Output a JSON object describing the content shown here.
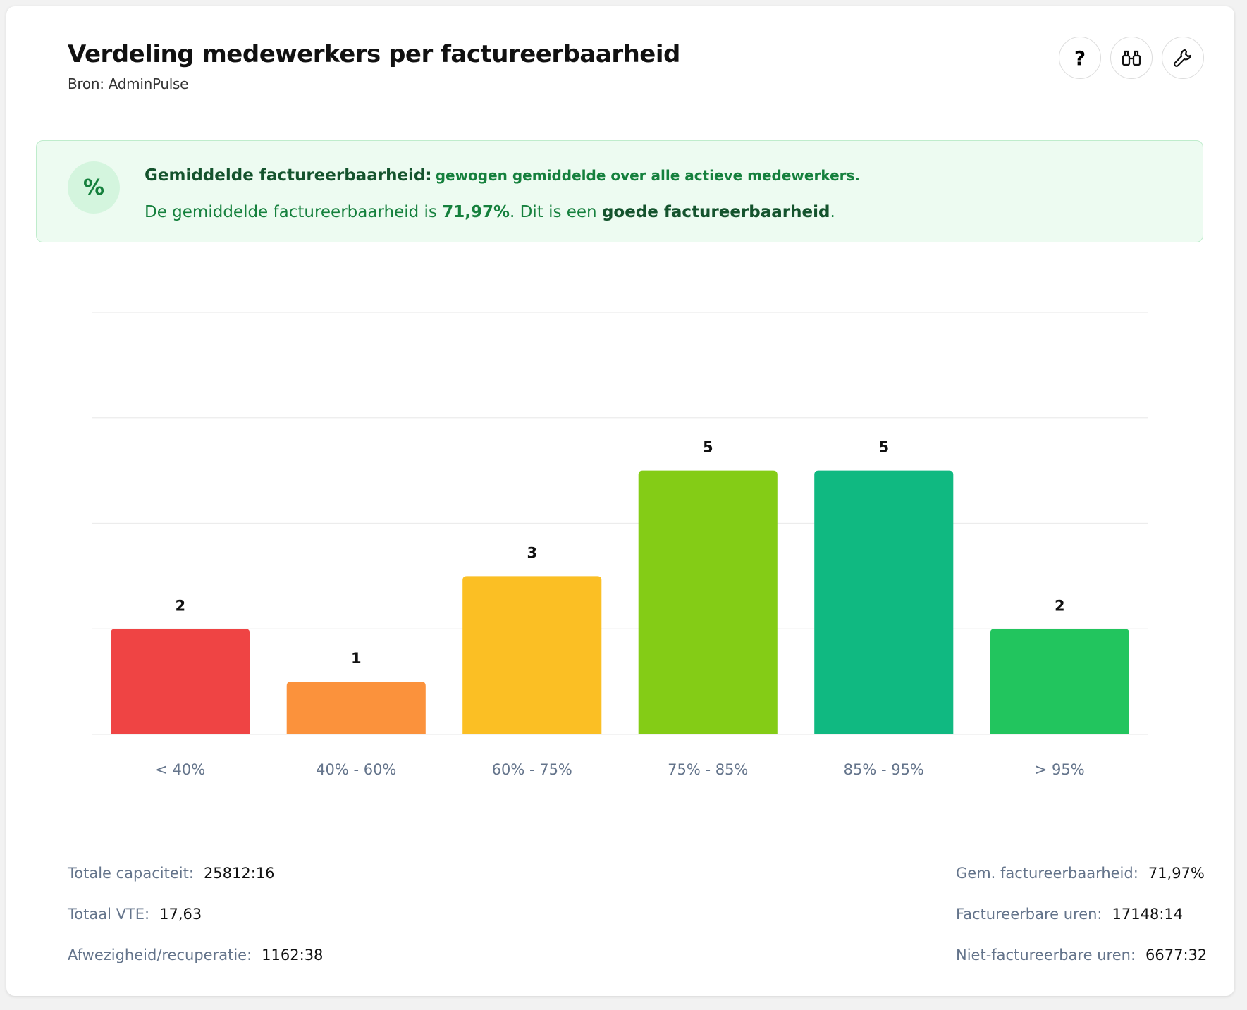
{
  "header": {
    "title": "Verdeling medewerkers per factureerbaarheid",
    "subtitle": "Bron: AdminPulse",
    "help_button": "?"
  },
  "info": {
    "icon": "%",
    "heading": "Gemiddelde factureerbaarheid:",
    "heading_note": "gewogen gemiddelde over alle actieve medewerkers.",
    "text_parts": [
      "De gemiddelde factureerbaarheid is ",
      "71,97%",
      ". Dit is een ",
      "goede factureerbaarheid",
      "."
    ]
  },
  "chart_data": {
    "type": "bar",
    "categories": [
      "< 40%",
      "40% - 60%",
      "60% - 75%",
      "75% - 85%",
      "85% - 95%",
      "> 95%"
    ],
    "values": [
      2,
      1,
      3,
      5,
      5,
      2
    ],
    "colors": [
      "#ef4444",
      "#fb923c",
      "#fbbf24",
      "#84cc16",
      "#10b981",
      "#22c55e"
    ],
    "ylim": [
      0,
      8
    ],
    "yticks": [
      0,
      2,
      4,
      6,
      8
    ],
    "grid": true
  },
  "stats": {
    "left": [
      {
        "label": "Totale capaciteit:",
        "value": "25812:16"
      },
      {
        "label": "Totaal VTE:",
        "value": "17,63"
      },
      {
        "label": "Afwezigheid/recuperatie:",
        "value": "1162:38"
      }
    ],
    "right": [
      {
        "label": "Gem. factureerbaarheid:",
        "value": "71,97%"
      },
      {
        "label": "Factureerbare uren:",
        "value": "17148:14"
      },
      {
        "label": "Niet-factureerbare uren:",
        "value": "6677:32"
      }
    ]
  }
}
